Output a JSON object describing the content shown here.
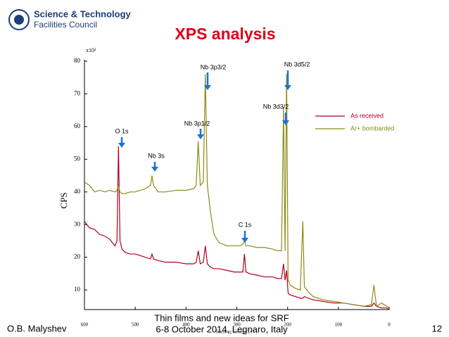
{
  "logo": {
    "line1": "Science & Technology",
    "line2": "Facilities Council"
  },
  "footer": {
    "author": "O.B. Malyshev",
    "event": "Thin films and new ideas for SRF",
    "date": "6-8 October 2014, Legnaro, Italy",
    "page": "12"
  },
  "chart_data": {
    "type": "line",
    "title": "XPS analysis",
    "xlabel": "Binding Energy (eV)",
    "ylabel": "CPS",
    "multiplier": "x10²",
    "x": [
      600,
      590,
      580,
      570,
      560,
      550,
      540,
      536,
      533,
      530,
      526,
      520,
      510,
      500,
      490,
      480,
      470,
      467,
      464,
      455,
      440,
      420,
      400,
      385,
      380,
      376,
      372,
      366,
      362,
      358,
      352,
      345,
      335,
      320,
      305,
      295,
      288,
      285,
      282,
      275,
      260,
      245,
      230,
      220,
      212,
      208,
      205,
      202,
      199,
      195,
      185,
      175,
      170,
      167,
      160,
      150,
      130,
      110,
      90,
      70,
      50,
      35,
      30,
      25,
      15,
      5,
      0
    ],
    "series": [
      {
        "name": "As received",
        "color": "#b0001e",
        "values": [
          31,
          29,
          28.5,
          27,
          26.5,
          25.5,
          23.5,
          25,
          54,
          25,
          22.5,
          21.5,
          21,
          21,
          20.5,
          20,
          19.5,
          21,
          19.5,
          19,
          18.5,
          18.5,
          18,
          18,
          18.5,
          22,
          18,
          18.5,
          23.5,
          18,
          17,
          16.5,
          16.5,
          16,
          15.5,
          15.5,
          15.5,
          21,
          15.5,
          15,
          14.5,
          14,
          14,
          13.5,
          13.5,
          18,
          13,
          16,
          9,
          8.5,
          8,
          7.5,
          7.5,
          8,
          7.5,
          7,
          6.5,
          6,
          6,
          5.5,
          5,
          5,
          6,
          5,
          4.5,
          4.5,
          4
        ]
      },
      {
        "name": "Ar+ bombarded",
        "color": "#8c8c14",
        "values": [
          43,
          42,
          40,
          40.5,
          40,
          40.5,
          40,
          40.5,
          42,
          40,
          39.5,
          39.5,
          40,
          40,
          40.5,
          41,
          42,
          45,
          42,
          40,
          40,
          40.5,
          40.5,
          41,
          42,
          55.5,
          42,
          43,
          76,
          42,
          34,
          27,
          24.5,
          23.5,
          23.5,
          23.5,
          24,
          25,
          23.5,
          23.5,
          23,
          23,
          22.5,
          22,
          22,
          66,
          22,
          76,
          13,
          11.5,
          10.5,
          10,
          31,
          11,
          9.5,
          8,
          7,
          6.5,
          6,
          5.5,
          5,
          5.5,
          11.5,
          5,
          6,
          5,
          4.5
        ]
      }
    ],
    "xlim": [
      600,
      0
    ],
    "ylim": [
      4,
      80
    ],
    "xticks": [
      600,
      500,
      400,
      300,
      200,
      100,
      0
    ],
    "yticks": [
      10,
      20,
      30,
      40,
      50,
      60,
      70,
      80
    ],
    "annotations": [
      "O 1s",
      "Nb 3s",
      "Nb 3p1/2",
      "Nb 3p3/2",
      "C 1s",
      "Nb 3d3/2",
      "Nb 3d5/2"
    ],
    "annotation_color": "#1f6fd6"
  }
}
